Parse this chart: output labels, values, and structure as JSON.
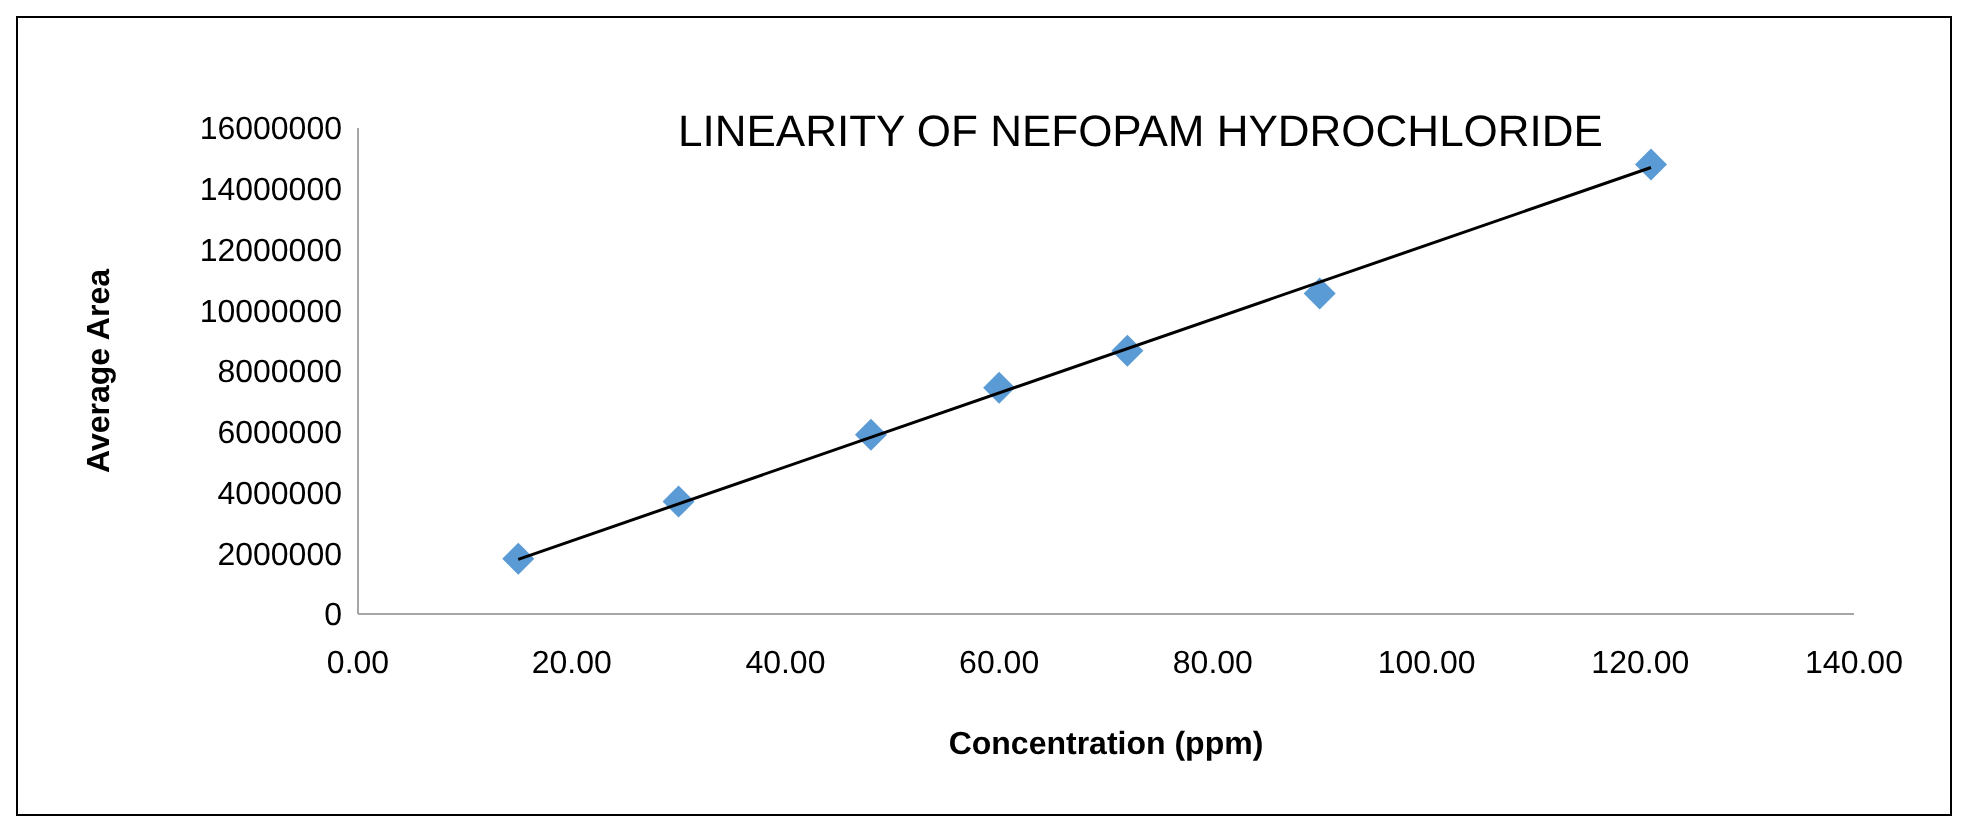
{
  "chart_data": {
    "type": "scatter",
    "title": "LINEARITY OF NEFOPAM HYDROCHLORIDE",
    "xlabel": "Concentration (ppm)",
    "ylabel": "Average Area",
    "series": [
      {
        "color": "#5b9bd5",
        "marker": "diamond",
        "x": [
          15,
          30,
          48,
          60,
          72,
          90,
          121
        ],
        "values": [
          1820000,
          3700000,
          5900000,
          7450000,
          8670000,
          10550000,
          14800000
        ]
      },
      {
        "type": "line",
        "color": "#000000",
        "marker": "none",
        "x": [
          15,
          121
        ],
        "values": [
          1800000,
          14700000
        ]
      }
    ],
    "xlim": [
      0,
      140
    ],
    "xticks": [
      {
        "value": 0,
        "label": "0.00"
      },
      {
        "value": 20,
        "label": "20.00"
      },
      {
        "value": 40,
        "label": "40.00"
      },
      {
        "value": 60,
        "label": "60.00"
      },
      {
        "value": 80,
        "label": "80.00"
      },
      {
        "value": 100,
        "label": "100.00"
      },
      {
        "value": 120,
        "label": "120.00"
      },
      {
        "value": 140,
        "label": "140.00"
      }
    ],
    "ylim": [
      0,
      16000000
    ],
    "yticks": [
      0,
      2000000,
      4000000,
      6000000,
      8000000,
      10000000,
      12000000,
      14000000,
      16000000
    ],
    "grid": false,
    "legend": false
  }
}
